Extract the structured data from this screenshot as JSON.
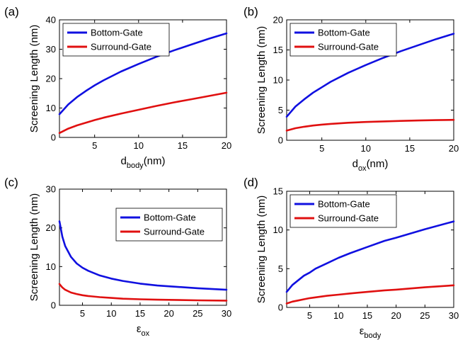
{
  "chart_data": [
    {
      "panel": "(a)",
      "type": "line",
      "xlabel": "d",
      "xlabel_sub": "body",
      "xlabel_suffix": "(nm)",
      "ylabel": "Screening Length (nm)",
      "xlim": [
        1,
        20
      ],
      "ylim": [
        0,
        40
      ],
      "xticks": [
        5,
        10,
        15,
        20
      ],
      "yticks": [
        0,
        10,
        20,
        30,
        40
      ],
      "legend": "top-left",
      "series": [
        {
          "name": "Bottom-Gate",
          "color": "#1010e0",
          "x": [
            1,
            2,
            3,
            4,
            5,
            6,
            8,
            10,
            12,
            14,
            16,
            18,
            20
          ],
          "y": [
            7.9,
            11.2,
            13.7,
            15.8,
            17.7,
            19.4,
            22.4,
            25.0,
            27.4,
            29.6,
            31.6,
            33.6,
            35.4
          ]
        },
        {
          "name": "Surround-Gate",
          "color": "#e01010",
          "x": [
            1,
            2,
            3,
            4,
            5,
            6,
            8,
            10,
            12,
            14,
            16,
            18,
            20
          ],
          "y": [
            1.5,
            3.0,
            4.1,
            5.0,
            5.9,
            6.7,
            8.1,
            9.4,
            10.7,
            11.9,
            13.0,
            14.1,
            15.2
          ]
        }
      ]
    },
    {
      "panel": "(b)",
      "type": "line",
      "xlabel": "d",
      "xlabel_sub": "ox",
      "xlabel_suffix": "(nm)",
      "ylabel": "Screening Length (nm)",
      "xlim": [
        1,
        20
      ],
      "ylim": [
        0,
        20
      ],
      "xticks": [
        5,
        10,
        15,
        20
      ],
      "yticks": [
        0,
        5,
        10,
        15,
        20
      ],
      "legend": "top-left",
      "series": [
        {
          "name": "Bottom-Gate",
          "color": "#1010e0",
          "x": [
            1,
            2,
            3,
            4,
            5,
            6,
            8,
            10,
            12,
            14,
            16,
            18,
            20
          ],
          "y": [
            3.9,
            5.6,
            6.8,
            7.9,
            8.8,
            9.7,
            11.2,
            12.5,
            13.7,
            14.8,
            15.8,
            16.8,
            17.7
          ]
        },
        {
          "name": "Surround-Gate",
          "color": "#e01010",
          "x": [
            1,
            2,
            3,
            4,
            5,
            6,
            8,
            10,
            12,
            14,
            16,
            18,
            20
          ],
          "y": [
            1.6,
            2.0,
            2.25,
            2.45,
            2.6,
            2.72,
            2.9,
            3.03,
            3.13,
            3.21,
            3.28,
            3.34,
            3.39
          ]
        }
      ]
    },
    {
      "panel": "(c)",
      "type": "line",
      "xlabel": "ε",
      "xlabel_sub": "ox",
      "xlabel_suffix": "",
      "ylabel": "Screening Length (nm)",
      "xlim": [
        1,
        30
      ],
      "ylim": [
        0,
        30
      ],
      "xticks": [
        5,
        10,
        15,
        20,
        25,
        30
      ],
      "yticks": [
        0,
        10,
        20,
        30
      ],
      "legend": "top-right",
      "series": [
        {
          "name": "Bottom-Gate",
          "color": "#1010e0",
          "x": [
            1,
            1.5,
            2,
            3,
            4,
            5,
            6,
            8,
            10,
            12,
            15,
            18,
            20,
            25,
            30
          ],
          "y": [
            21.7,
            17.7,
            15.3,
            12.5,
            10.8,
            9.7,
            8.9,
            7.7,
            6.9,
            6.3,
            5.6,
            5.1,
            4.9,
            4.4,
            4.0
          ]
        },
        {
          "name": "Surround-Gate",
          "color": "#e01010",
          "x": [
            1,
            1.5,
            2,
            3,
            4,
            5,
            6,
            8,
            10,
            12,
            15,
            18,
            20,
            25,
            30
          ],
          "y": [
            5.5,
            4.6,
            4.0,
            3.3,
            2.9,
            2.6,
            2.4,
            2.1,
            1.9,
            1.7,
            1.55,
            1.45,
            1.4,
            1.28,
            1.2
          ]
        }
      ]
    },
    {
      "panel": "(d)",
      "type": "line",
      "xlabel": "ε",
      "xlabel_sub": "body",
      "xlabel_suffix": "",
      "ylabel": "Screening Length (nm)",
      "xlim": [
        1,
        30
      ],
      "ylim": [
        0,
        15
      ],
      "xticks": [
        5,
        10,
        15,
        20,
        25,
        30
      ],
      "yticks": [
        0,
        5,
        10,
        15
      ],
      "legend": "top-left",
      "series": [
        {
          "name": "Bottom-Gate",
          "color": "#1010e0",
          "x": [
            1,
            2,
            3,
            4,
            5,
            6,
            8,
            10,
            12,
            15,
            18,
            20,
            25,
            30
          ],
          "y": [
            2.0,
            2.9,
            3.5,
            4.1,
            4.5,
            5.0,
            5.7,
            6.4,
            7.0,
            7.8,
            8.6,
            9.0,
            10.1,
            11.1
          ]
        },
        {
          "name": "Surround-Gate",
          "color": "#e01010",
          "x": [
            1,
            2,
            3,
            4,
            5,
            6,
            8,
            10,
            12,
            15,
            18,
            20,
            25,
            30
          ],
          "y": [
            0.5,
            0.75,
            0.9,
            1.05,
            1.2,
            1.3,
            1.5,
            1.65,
            1.8,
            2.0,
            2.2,
            2.3,
            2.6,
            2.85
          ]
        }
      ]
    }
  ]
}
